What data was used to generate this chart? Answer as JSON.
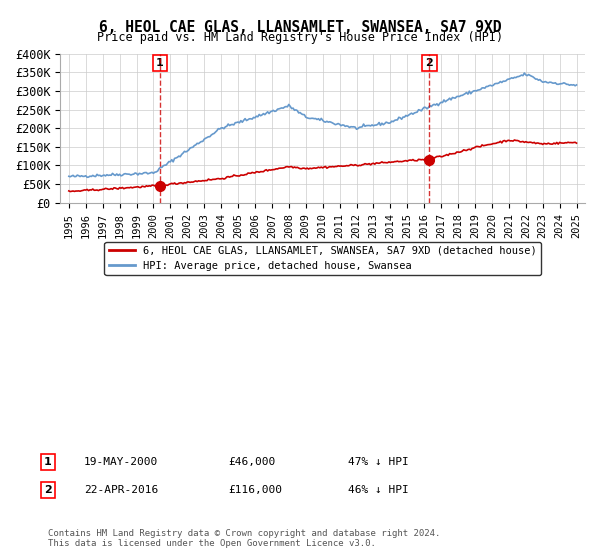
{
  "title": "6, HEOL CAE GLAS, LLANSAMLET, SWANSEA, SA7 9XD",
  "subtitle": "Price paid vs. HM Land Registry's House Price Index (HPI)",
  "ylim": [
    0,
    400000
  ],
  "yticks": [
    0,
    50000,
    100000,
    150000,
    200000,
    250000,
    300000,
    350000,
    400000
  ],
  "ytick_labels": [
    "£0",
    "£50K",
    "£100K",
    "£150K",
    "£200K",
    "£250K",
    "£300K",
    "£350K",
    "£400K"
  ],
  "transaction1": {
    "date_num": 2000.38,
    "price": 46000,
    "label": "1",
    "date_str": "19-MAY-2000",
    "price_str": "£46,000",
    "pct_str": "47% ↓ HPI"
  },
  "transaction2": {
    "date_num": 2016.31,
    "price": 116000,
    "label": "2",
    "date_str": "22-APR-2016",
    "price_str": "£116,000",
    "pct_str": "46% ↓ HPI"
  },
  "property_color": "#cc0000",
  "hpi_color": "#6699cc",
  "dashed_color": "#cc0000",
  "marker_color": "#cc0000",
  "legend_property_label": "6, HEOL CAE GLAS, LLANSAMLET, SWANSEA, SA7 9XD (detached house)",
  "legend_hpi_label": "HPI: Average price, detached house, Swansea",
  "footer1": "Contains HM Land Registry data © Crown copyright and database right 2024.",
  "footer2": "This data is licensed under the Open Government Licence v3.0.",
  "background_color": "#ffffff",
  "grid_color": "#cccccc",
  "xlim": [
    1994.5,
    2025.5
  ],
  "xtick_start": 1995,
  "xtick_end": 2025
}
